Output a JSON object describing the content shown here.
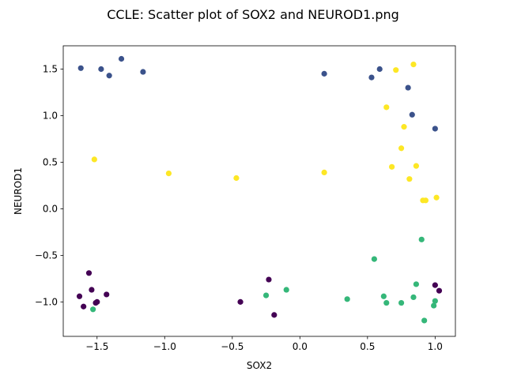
{
  "chart_data": {
    "type": "scatter",
    "title": "CCLE: Scatter plot of SOX2 and NEUROD1.png",
    "xlabel": "SOX2",
    "ylabel": "NEUROD1",
    "xlim": [
      -1.75,
      1.15
    ],
    "ylim": [
      -1.37,
      1.75
    ],
    "xticks": [
      -1.5,
      -1.0,
      -0.5,
      0.0,
      0.5,
      1.0
    ],
    "xtick_labels": [
      "−1.5",
      "−1.0",
      "−0.5",
      "0.0",
      "0.5",
      "1.0"
    ],
    "yticks": [
      -1.0,
      -0.5,
      0.0,
      0.5,
      1.0,
      1.5
    ],
    "ytick_labels": [
      "−1.0",
      "−0.5",
      "0.0",
      "0.5",
      "1.0",
      "1.5"
    ],
    "grid": false,
    "series": [
      {
        "color": "#3b528b",
        "points": [
          [
            -1.62,
            1.51
          ],
          [
            -1.47,
            1.5
          ],
          [
            -1.41,
            1.43
          ],
          [
            -1.32,
            1.61
          ],
          [
            -1.16,
            1.47
          ],
          [
            0.18,
            1.45
          ],
          [
            0.53,
            1.41
          ],
          [
            0.59,
            1.5
          ],
          [
            0.8,
            1.3
          ],
          [
            0.83,
            1.01
          ],
          [
            1.0,
            0.86
          ]
        ]
      },
      {
        "color": "#fde725",
        "points": [
          [
            -1.52,
            0.53
          ],
          [
            -0.97,
            0.38
          ],
          [
            -0.47,
            0.33
          ],
          [
            0.18,
            0.39
          ],
          [
            0.64,
            1.09
          ],
          [
            0.71,
            1.49
          ],
          [
            0.75,
            0.65
          ],
          [
            0.77,
            0.88
          ],
          [
            0.68,
            0.45
          ],
          [
            0.81,
            0.32
          ],
          [
            0.84,
            1.55
          ],
          [
            0.86,
            0.46
          ],
          [
            0.91,
            0.09
          ],
          [
            0.93,
            0.09
          ],
          [
            1.01,
            0.12
          ]
        ]
      },
      {
        "color": "#440154",
        "points": [
          [
            -1.63,
            -0.94
          ],
          [
            -1.6,
            -1.05
          ],
          [
            -1.56,
            -0.69
          ],
          [
            -1.54,
            -0.87
          ],
          [
            -1.51,
            -1.01
          ],
          [
            -1.5,
            -1.0
          ],
          [
            -1.43,
            -0.92
          ],
          [
            -0.44,
            -1.0
          ],
          [
            -0.23,
            -0.76
          ],
          [
            -0.19,
            -1.14
          ],
          [
            1.0,
            -0.82
          ],
          [
            1.03,
            -0.88
          ]
        ]
      },
      {
        "color": "#35b779",
        "points": [
          [
            -1.53,
            -1.08
          ],
          [
            -0.25,
            -0.93
          ],
          [
            -0.1,
            -0.87
          ],
          [
            0.35,
            -0.97
          ],
          [
            0.55,
            -0.54
          ],
          [
            0.62,
            -0.94
          ],
          [
            0.64,
            -1.01
          ],
          [
            0.75,
            -1.01
          ],
          [
            0.84,
            -0.95
          ],
          [
            0.86,
            -0.81
          ],
          [
            0.9,
            -0.33
          ],
          [
            0.92,
            -1.2
          ],
          [
            0.99,
            -1.04
          ],
          [
            1.0,
            -0.99
          ]
        ]
      }
    ]
  }
}
